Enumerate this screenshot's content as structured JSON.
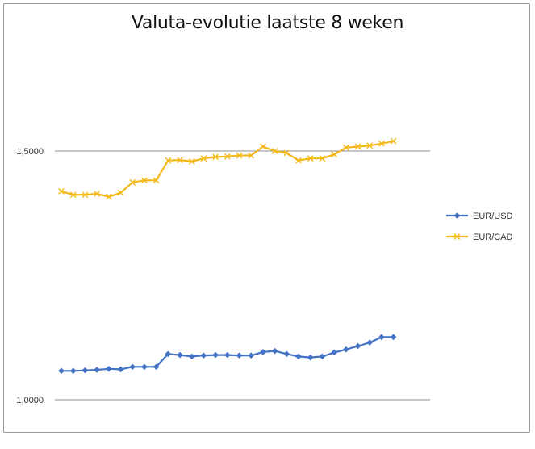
{
  "chart_data": {
    "type": "line",
    "title": "Valuta-evolutie laatste 8 weken",
    "xlabel": "",
    "ylabel": "",
    "ylim": [
      1.0,
      1.5
    ],
    "yticks": [
      "1,0000",
      "1,5000"
    ],
    "y_tick_values": [
      1.0,
      1.5
    ],
    "grid": true,
    "legend_position": "right",
    "series": [
      {
        "name": "EUR/USD",
        "color": "#4472C4",
        "marker": "diamond",
        "values": [
          1.058,
          1.058,
          1.059,
          1.06,
          1.062,
          1.061,
          1.066,
          1.066,
          1.066,
          1.092,
          1.09,
          1.087,
          1.089,
          1.09,
          1.09,
          1.089,
          1.089,
          1.096,
          1.098,
          1.092,
          1.087,
          1.085,
          1.087,
          1.095,
          1.101,
          1.108,
          1.115,
          1.126,
          1.126
        ]
      },
      {
        "name": "EUR/CAD",
        "color": "#F4B918",
        "marker": "x",
        "values": [
          1.419,
          1.412,
          1.412,
          1.414,
          1.408,
          1.416,
          1.437,
          1.441,
          1.441,
          1.481,
          1.482,
          1.479,
          1.485,
          1.488,
          1.489,
          1.491,
          1.491,
          1.509,
          1.5,
          1.496,
          1.481,
          1.485,
          1.485,
          1.493,
          1.507,
          1.509,
          1.511,
          1.515,
          1.52
        ]
      }
    ]
  }
}
